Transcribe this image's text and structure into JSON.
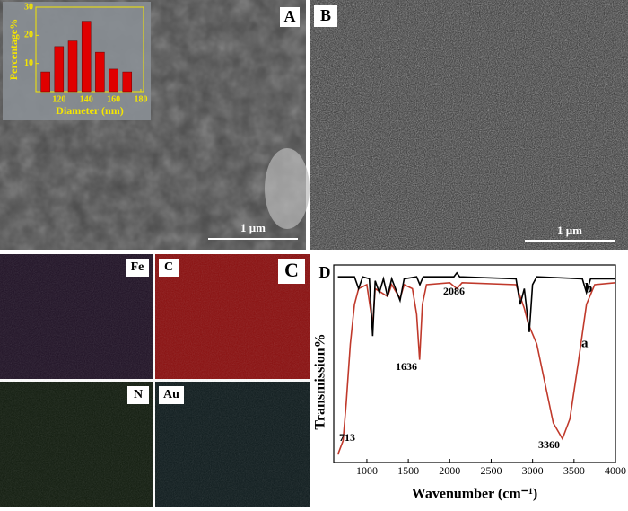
{
  "panels": {
    "A": "A",
    "B": "B",
    "C": "C",
    "D": "D"
  },
  "scale_bars": [
    "1 μm",
    "1 μm"
  ],
  "eds_maps": [
    "Fe",
    "C",
    "N",
    "Au"
  ],
  "chart_data": [
    {
      "type": "bar",
      "xlabel": "Diameter (nm)",
      "ylabel": "Percentage%",
      "x": [
        110,
        120,
        130,
        140,
        150,
        160,
        170
      ],
      "values": [
        7,
        16,
        18,
        25,
        14,
        8,
        7
      ],
      "color": "#e00000",
      "xlim": [
        103,
        182
      ],
      "xticks": [
        120,
        140,
        160,
        180
      ],
      "ylim": [
        0,
        30
      ],
      "yticks": [
        10,
        20,
        30
      ]
    },
    {
      "type": "line",
      "xlabel": "Wavenumber (cm⁻¹)",
      "ylabel": "Transmission%",
      "xlim": [
        600,
        4000
      ],
      "xticks": [
        1000,
        1500,
        2000,
        2500,
        3000,
        3500,
        4000
      ],
      "ylim": [
        0,
        100
      ],
      "annotations": [
        "713",
        "1636",
        "2086",
        "3360"
      ],
      "series": [
        {
          "name": "a",
          "color": "#c0392b",
          "x": [
            650,
            713,
            750,
            800,
            850,
            900,
            1000,
            1070,
            1100,
            1250,
            1300,
            1400,
            1450,
            1550,
            1600,
            1636,
            1670,
            1720,
            2000,
            2086,
            2150,
            2800,
            2900,
            2950,
            3050,
            3150,
            3250,
            3360,
            3450,
            3550,
            3650,
            3750,
            4000
          ],
          "values": [
            4,
            11,
            30,
            60,
            80,
            88,
            90,
            70,
            88,
            84,
            90,
            83,
            90,
            88,
            75,
            52,
            80,
            90,
            91,
            88,
            91,
            90,
            78,
            70,
            60,
            40,
            20,
            12,
            22,
            50,
            80,
            90,
            91
          ]
        },
        {
          "name": "b",
          "color": "#000000",
          "x": [
            650,
            850,
            900,
            950,
            1030,
            1070,
            1100,
            1150,
            1200,
            1250,
            1300,
            1400,
            1450,
            1600,
            1640,
            1680,
            2050,
            2086,
            2120,
            2800,
            2850,
            2900,
            2960,
            3000,
            3050,
            3600,
            3650,
            3700,
            4000
          ],
          "values": [
            94,
            94,
            88,
            94,
            93,
            64,
            92,
            86,
            93,
            84,
            93,
            82,
            93,
            94,
            90,
            94,
            94,
            96,
            94,
            93,
            80,
            88,
            66,
            90,
            94,
            93,
            86,
            93,
            93
          ]
        }
      ]
    }
  ]
}
